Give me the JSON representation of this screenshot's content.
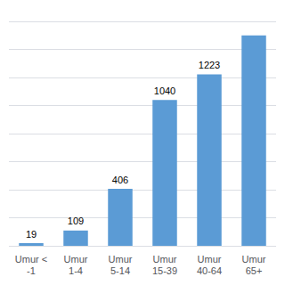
{
  "chart_data": {
    "type": "bar",
    "categories": [
      "Umur <\n-1",
      "Umur\n1-4",
      "Umur\n5-14",
      "Umur\n15-39",
      "Umur\n40-64",
      "Umur\n65+"
    ],
    "values": [
      19,
      109,
      406,
      1040,
      1223,
      1500
    ],
    "value_labels": [
      "19",
      "109",
      "406",
      "1040",
      "1223",
      null
    ],
    "data_labels": true,
    "color": "#5B9BD5",
    "ylim": [
      0,
      1600
    ],
    "yticks": [
      0,
      200,
      400,
      600,
      800,
      1000,
      1200,
      1400,
      1600
    ],
    "grid": true,
    "tick_labels": "x"
  }
}
